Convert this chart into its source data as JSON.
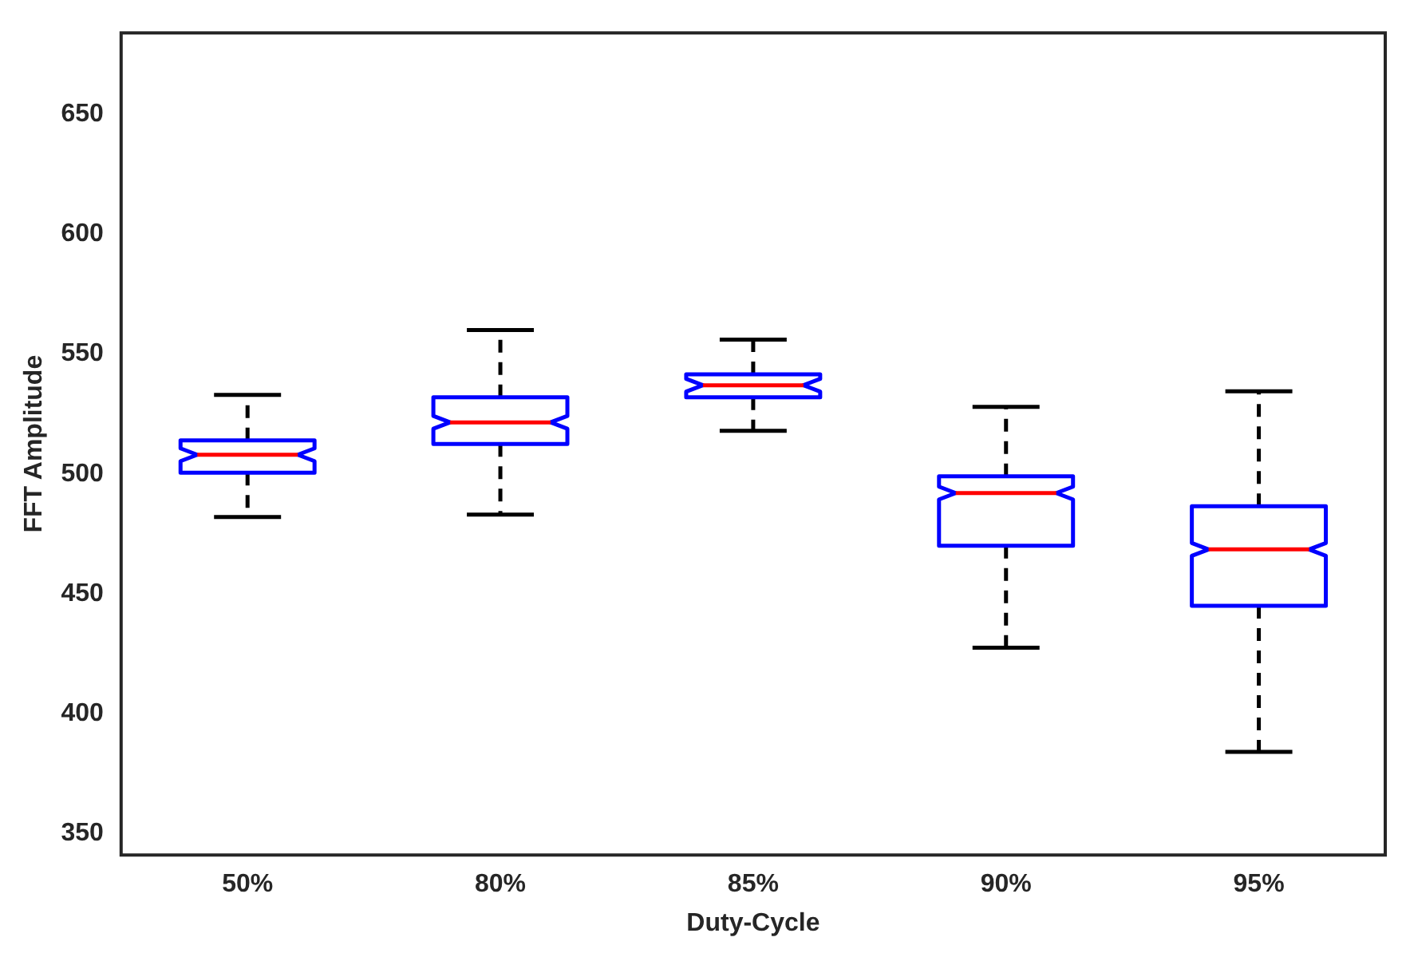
{
  "chart_data": {
    "type": "box",
    "xlabel": "Duty-Cycle",
    "ylabel": "FFT Amplitude",
    "categories": [
      "50%",
      "80%",
      "85%",
      "90%",
      "95%"
    ],
    "ylim": [
      341,
      684
    ],
    "yticks": [
      350,
      400,
      450,
      500,
      550,
      600,
      650
    ],
    "grid": false,
    "legend": false,
    "series": [
      {
        "color": "#0000ff",
        "boxes": [
          {
            "low": 482,
            "q1": 500.5,
            "median": 508,
            "q3": 514,
            "high": 533
          },
          {
            "low": 483,
            "q1": 512.5,
            "median": 521.5,
            "q3": 532,
            "high": 560
          },
          {
            "low": 518,
            "q1": 532,
            "median": 537,
            "q3": 541.5,
            "high": 556
          },
          {
            "low": 427.5,
            "q1": 470,
            "median": 492,
            "q3": 499,
            "high": 528
          },
          {
            "low": 384,
            "q1": 445,
            "median": 468.5,
            "q3": 486.5,
            "high": 534.5
          }
        ]
      }
    ]
  }
}
